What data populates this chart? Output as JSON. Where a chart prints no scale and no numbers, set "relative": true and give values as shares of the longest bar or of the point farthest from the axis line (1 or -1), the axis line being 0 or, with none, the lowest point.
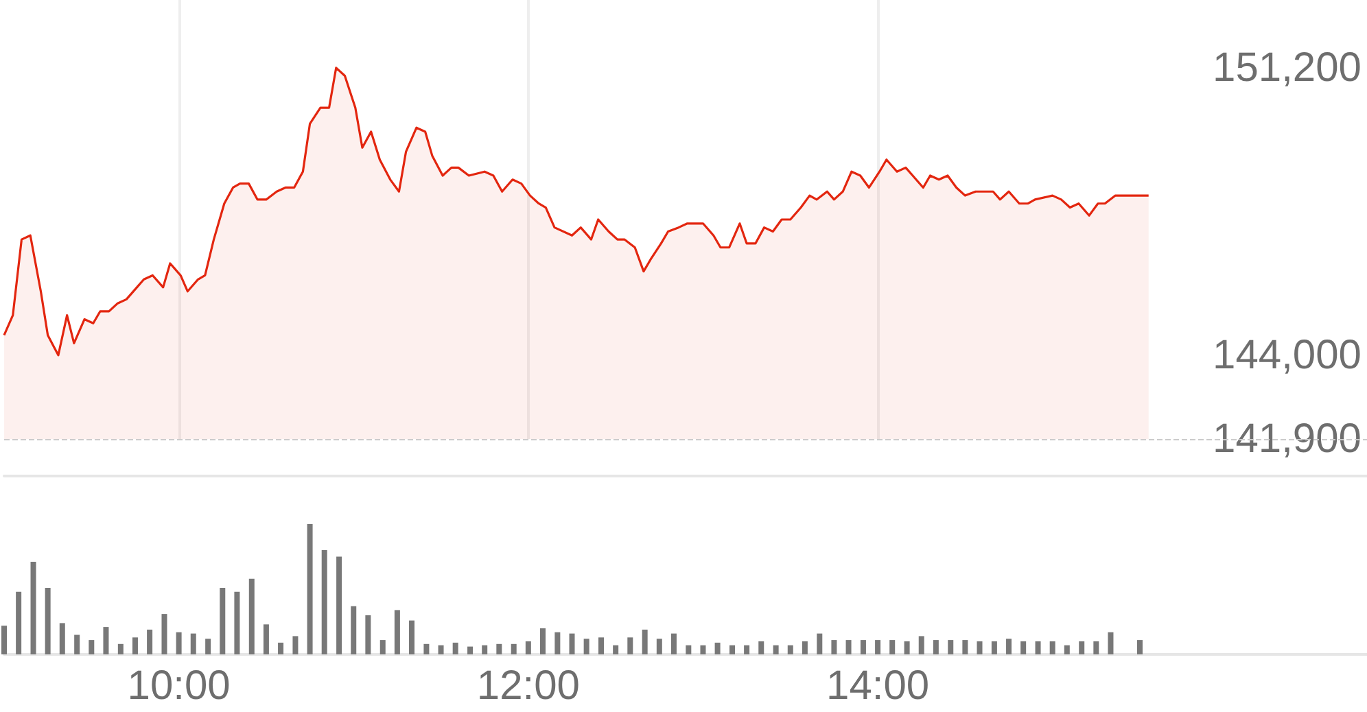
{
  "chart_data": [
    {
      "type": "area",
      "color": "#e3260f",
      "grid": "x",
      "tick_labels": "y",
      "line_style": "solid",
      "xlim": [
        9,
        16.8
      ],
      "xticks": [
        {
          "value": 10,
          "label": null
        },
        {
          "value": 12,
          "label": null
        },
        {
          "value": 14,
          "label": null
        }
      ],
      "ylim": [
        141900,
        152900
      ],
      "yticks": [
        {
          "value": 141900,
          "label": "141,900"
        },
        {
          "value": 144000,
          "label": "144,000"
        },
        {
          "value": 151200,
          "label": "151,200"
        }
      ],
      "ref_lines": [
        {
          "axis": "y",
          "value": 141900,
          "color": "#cccccc",
          "line_style": "dashed"
        }
      ],
      "x": [
        9.0,
        9.05,
        9.1,
        9.15,
        9.21,
        9.25,
        9.31,
        9.36,
        9.4,
        9.46,
        9.51,
        9.55,
        9.6,
        9.65,
        9.7,
        9.76,
        9.8,
        9.85,
        9.91,
        9.95,
        10.01,
        10.05,
        10.11,
        10.15,
        10.2,
        10.26,
        10.31,
        10.35,
        10.4,
        10.45,
        10.5,
        10.56,
        10.61,
        10.66,
        10.71,
        10.75,
        10.81,
        10.86,
        10.9,
        10.95,
        11.01,
        11.05,
        11.1,
        11.15,
        11.21,
        11.26,
        11.3,
        11.36,
        11.41,
        11.45,
        11.51,
        11.56,
        11.6,
        11.66,
        11.75,
        11.8,
        11.85,
        11.91,
        11.96,
        12.01,
        12.06,
        12.1,
        12.15,
        12.25,
        12.3,
        12.36,
        12.4,
        12.46,
        12.51,
        12.55,
        12.61,
        12.66,
        12.7,
        12.76,
        12.8,
        12.86,
        12.91,
        13.0,
        13.06,
        13.1,
        13.15,
        13.21,
        13.25,
        13.3,
        13.35,
        13.4,
        13.45,
        13.5,
        13.56,
        13.61,
        13.65,
        13.71,
        13.75,
        13.8,
        13.85,
        13.9,
        13.95,
        14.01,
        14.05,
        14.11,
        14.16,
        14.2,
        14.26,
        14.3,
        14.35,
        14.4,
        14.45,
        14.5,
        14.56,
        14.61,
        14.66,
        14.7,
        14.75,
        14.81,
        14.86,
        14.9,
        15.0,
        15.05,
        15.1,
        15.15,
        15.21,
        15.26,
        15.3,
        15.36,
        15.55
      ],
      "values": [
        144500,
        145000,
        146900,
        147000,
        145600,
        144500,
        144000,
        145000,
        144300,
        144900,
        144800,
        145100,
        145100,
        145300,
        145400,
        145700,
        145900,
        146000,
        145700,
        146300,
        146000,
        145600,
        145900,
        146000,
        146900,
        147800,
        148200,
        148300,
        148300,
        147900,
        147900,
        148100,
        148200,
        148200,
        148600,
        149800,
        150200,
        150200,
        151200,
        151000,
        150200,
        149200,
        149600,
        148900,
        148400,
        148100,
        149100,
        149700,
        149600,
        149000,
        148500,
        148700,
        148700,
        148500,
        148600,
        148500,
        148100,
        148400,
        148300,
        148000,
        147800,
        147700,
        147200,
        147000,
        147200,
        146900,
        147400,
        147100,
        146900,
        146900,
        146700,
        146100,
        146400,
        146800,
        147100,
        147200,
        147300,
        147300,
        147000,
        146700,
        146700,
        147300,
        146800,
        146800,
        147200,
        147100,
        147400,
        147400,
        147700,
        148000,
        147900,
        148100,
        147900,
        148100,
        148600,
        148500,
        148200,
        148600,
        148900,
        148600,
        148700,
        148500,
        148200,
        148500,
        148400,
        148500,
        148200,
        148000,
        148100,
        148100,
        148100,
        147900,
        148100,
        147800,
        147800,
        147900,
        148000,
        147900,
        147700,
        147800,
        147500,
        147800,
        147800,
        148000,
        148000
      ]
    },
    {
      "type": "bar",
      "relative": true,
      "color": "#787878",
      "tick_labels": "x",
      "xlim": [
        9,
        16.8
      ],
      "xticks": [
        {
          "value": 10,
          "label": "10:00"
        },
        {
          "value": 12,
          "label": "12:00"
        },
        {
          "value": 14,
          "label": "14:00"
        }
      ],
      "x": [
        9.0,
        9.083,
        9.167,
        9.25,
        9.333,
        9.417,
        9.5,
        9.583,
        9.667,
        9.75,
        9.833,
        9.917,
        10.0,
        10.083,
        10.167,
        10.25,
        10.333,
        10.417,
        10.5,
        10.583,
        10.667,
        10.75,
        10.833,
        10.917,
        11.0,
        11.083,
        11.167,
        11.25,
        11.333,
        11.417,
        11.5,
        11.583,
        11.667,
        11.75,
        11.833,
        11.917,
        12.0,
        12.083,
        12.167,
        12.25,
        12.333,
        12.417,
        12.5,
        12.583,
        12.667,
        12.75,
        12.833,
        12.917,
        13.0,
        13.083,
        13.167,
        13.25,
        13.333,
        13.417,
        13.5,
        13.583,
        13.667,
        13.75,
        13.833,
        13.917,
        14.0,
        14.083,
        14.167,
        14.25,
        14.333,
        14.417,
        14.5,
        14.583,
        14.667,
        14.75,
        14.833,
        14.917,
        15.0,
        15.083,
        15.167,
        15.25,
        15.333,
        15.417,
        15.5
      ],
      "values": [
        0.22,
        0.48,
        0.71,
        0.51,
        0.24,
        0.15,
        0.11,
        0.21,
        0.08,
        0.13,
        0.19,
        0.31,
        0.17,
        0.16,
        0.12,
        0.51,
        0.48,
        0.58,
        0.23,
        0.09,
        0.14,
        1,
        0.8,
        0.75,
        0.37,
        0.3,
        0.11,
        0.34,
        0.26,
        0.08,
        0.07,
        0.09,
        0.06,
        0.07,
        0.08,
        0.08,
        0.1,
        0.2,
        0.17,
        0.16,
        0.12,
        0.13,
        0.07,
        0.13,
        0.19,
        0.12,
        0.16,
        0.07,
        0.07,
        0.09,
        0.07,
        0.07,
        0.1,
        0.07,
        0.07,
        0.1,
        0.16,
        0.11,
        0.11,
        0.11,
        0.11,
        0.11,
        0.1,
        0.14,
        0.11,
        0.11,
        0.11,
        0.1,
        0.1,
        0.12,
        0.1,
        0.1,
        0.1,
        0.07,
        0.1,
        0.1,
        0.17,
        null,
        0.11
      ]
    }
  ]
}
